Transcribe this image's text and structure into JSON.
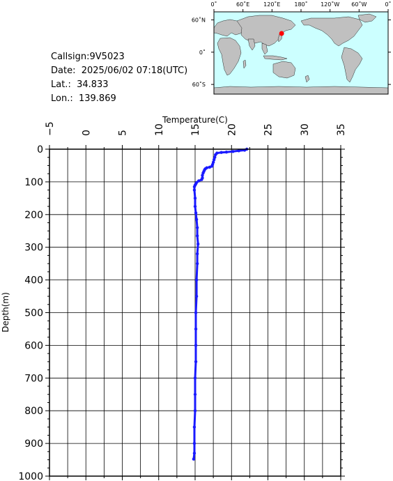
{
  "info": {
    "callsign": "Callsign:9V5023",
    "date": "Date:  2025/06/02 07:18(UTC)",
    "lat": "Lat.:  34.833",
    "lon": "Lon.:  139.869"
  },
  "map": {
    "top_labels": [
      "0˚",
      "60˚E",
      "120˚E",
      "180˚",
      "120˚W",
      "60˚W",
      "0˚"
    ],
    "lon_values": [
      0,
      60,
      120,
      180,
      240,
      300,
      360
    ],
    "left_labels": [
      "60˚N",
      "0˚",
      "60˚S"
    ],
    "lat_values": [
      60,
      0,
      -60
    ],
    "marker": {
      "lat": 34.833,
      "lon": 139.869
    },
    "colors": {
      "ocean": "#ccffff",
      "land": "#c0c0c0",
      "marker": "#ff0000"
    }
  },
  "chart_data": {
    "type": "line",
    "xlabel": "Temperature(C)",
    "ylabel": "Depth(m)",
    "xlim": [
      -5,
      35
    ],
    "ylim": [
      0,
      1000
    ],
    "x_ticks": [
      -5,
      0,
      5,
      10,
      15,
      20,
      25,
      30,
      35
    ],
    "y_ticks": [
      0,
      100,
      200,
      300,
      400,
      500,
      600,
      700,
      800,
      900,
      1000
    ],
    "grid": true,
    "series_color": "#1a1aff",
    "series": [
      {
        "points": [
          [
            22.1,
            0
          ],
          [
            21.8,
            3
          ],
          [
            21.0,
            5
          ],
          [
            20.2,
            7
          ],
          [
            19.3,
            9
          ],
          [
            18.6,
            10
          ],
          [
            18.0,
            12
          ],
          [
            17.8,
            17
          ],
          [
            17.7,
            25
          ],
          [
            17.6,
            32
          ],
          [
            17.5,
            40
          ],
          [
            17.4,
            47
          ],
          [
            17.3,
            52
          ],
          [
            17.0,
            55
          ],
          [
            16.6,
            57
          ],
          [
            16.4,
            60
          ],
          [
            16.3,
            63
          ],
          [
            16.2,
            68
          ],
          [
            16.1,
            73
          ],
          [
            16.0,
            80
          ],
          [
            16.0,
            88
          ],
          [
            15.9,
            93
          ],
          [
            15.5,
            97
          ],
          [
            15.2,
            102
          ],
          [
            15.1,
            106
          ],
          [
            15.0,
            110
          ],
          [
            14.9,
            115
          ],
          [
            14.9,
            125
          ],
          [
            15.0,
            150
          ],
          [
            15.0,
            175
          ],
          [
            15.1,
            195
          ],
          [
            15.2,
            215
          ],
          [
            15.3,
            240
          ],
          [
            15.3,
            265
          ],
          [
            15.4,
            290
          ],
          [
            15.3,
            320
          ],
          [
            15.3,
            350
          ],
          [
            15.2,
            400
          ],
          [
            15.2,
            450
          ],
          [
            15.1,
            500
          ],
          [
            15.1,
            550
          ],
          [
            15.1,
            600
          ],
          [
            15.1,
            650
          ],
          [
            15.0,
            700
          ],
          [
            15.0,
            750
          ],
          [
            15.0,
            800
          ],
          [
            14.9,
            850
          ],
          [
            14.9,
            900
          ],
          [
            14.9,
            930
          ],
          [
            14.8,
            948
          ]
        ]
      }
    ]
  }
}
